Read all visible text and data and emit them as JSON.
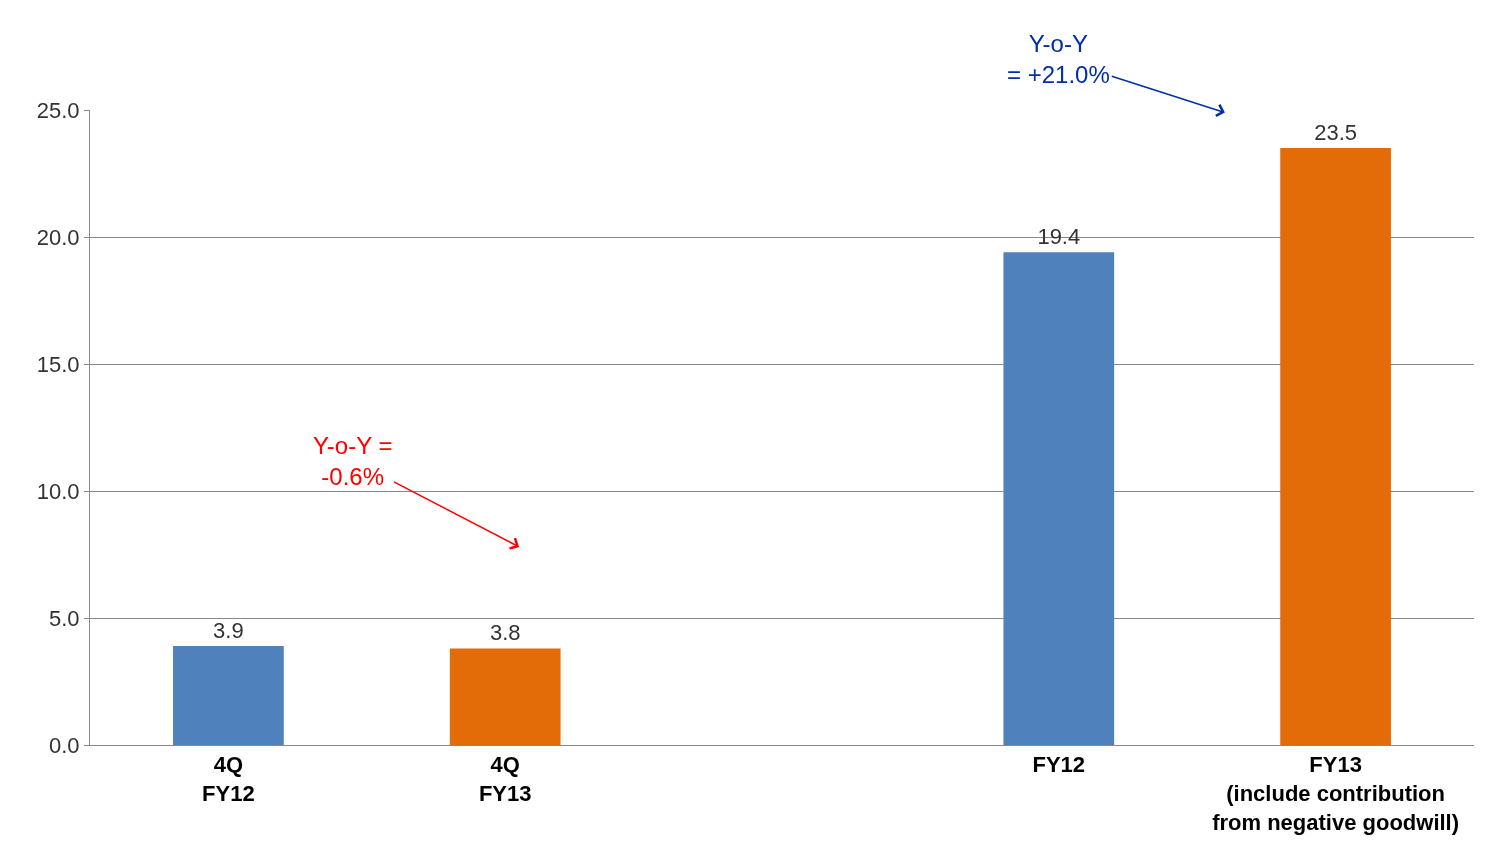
{
  "chart_data": {
    "type": "bar",
    "categories": [
      "4Q\nFY12",
      "4Q\nFY13",
      null,
      "FY12",
      "FY13\n(include contribution\nfrom negative goodwill)"
    ],
    "values": [
      3.9,
      3.8,
      null,
      19.4,
      23.5
    ],
    "colors": [
      "#4f81bd",
      "#e36c09",
      null,
      "#4f81bd",
      "#e36c09"
    ],
    "ylim": [
      0,
      25
    ],
    "yticks": [
      {
        "value": 0,
        "label": "0.0"
      },
      {
        "value": 5,
        "label": "5.0"
      },
      {
        "value": 10,
        "label": "10.0"
      },
      {
        "value": 15,
        "label": "15.0"
      },
      {
        "value": 20,
        "label": "20.0"
      },
      {
        "value": 25,
        "label": "25.0"
      }
    ],
    "grid": "y",
    "data_labels": true,
    "annotations": [
      "Y-o-Y =\n-0.6%",
      "Y-o-Y\n= +21.0%"
    ]
  }
}
